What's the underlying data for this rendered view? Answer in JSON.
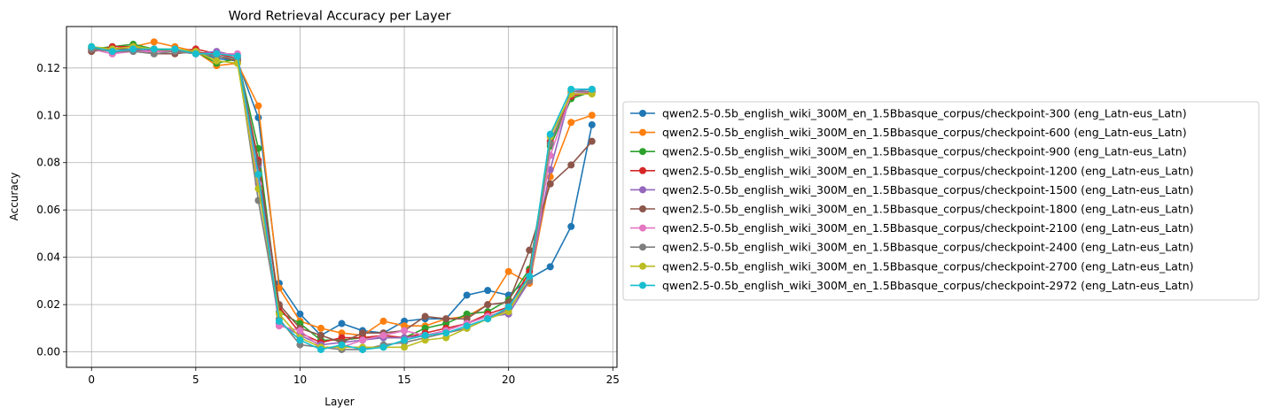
{
  "chart_data": {
    "type": "line",
    "title": "Word Retrieval Accuracy per Layer",
    "xlabel": "Layer",
    "ylabel": "Accuracy",
    "xlim": [
      -1.2,
      25.2
    ],
    "ylim": [
      -0.0065,
      0.1375
    ],
    "xticks": [
      0,
      5,
      10,
      15,
      20,
      25
    ],
    "yticks": [
      0.0,
      0.02,
      0.04,
      0.06,
      0.08,
      0.1,
      0.12
    ],
    "ytick_labels": [
      "0.00",
      "0.02",
      "0.04",
      "0.06",
      "0.08",
      "0.10",
      "0.12"
    ],
    "grid": true,
    "legend_position": "center-left outside",
    "x": [
      0,
      1,
      2,
      3,
      4,
      5,
      6,
      7,
      8,
      9,
      10,
      11,
      12,
      13,
      14,
      15,
      16,
      17,
      18,
      19,
      20,
      21,
      22,
      23,
      24
    ],
    "series": [
      {
        "name": "qwen2.5-0.5b_english_wiki_300M_en_1.5Bbasque_corpus/checkpoint-300 (eng_Latn-eus_Latn)",
        "color": "#1f77b4",
        "values": [
          0.129,
          0.127,
          0.127,
          0.128,
          0.127,
          0.127,
          0.124,
          0.123,
          0.099,
          0.029,
          0.016,
          0.007,
          0.012,
          0.009,
          0.008,
          0.013,
          0.014,
          0.014,
          0.024,
          0.026,
          0.024,
          0.031,
          0.036,
          0.053,
          0.096
        ]
      },
      {
        "name": "qwen2.5-0.5b_english_wiki_300M_en_1.5Bbasque_corpus/checkpoint-600 (eng_Latn-eus_Latn)",
        "color": "#ff7f0e",
        "values": [
          0.128,
          0.128,
          0.129,
          0.131,
          0.129,
          0.127,
          0.121,
          0.122,
          0.104,
          0.027,
          0.013,
          0.01,
          0.008,
          0.007,
          0.013,
          0.011,
          0.011,
          0.014,
          0.015,
          0.02,
          0.034,
          0.029,
          0.074,
          0.097,
          0.1
        ]
      },
      {
        "name": "qwen2.5-0.5b_english_wiki_300M_en_1.5Bbasque_corpus/checkpoint-900 (eng_Latn-eus_Latn)",
        "color": "#2ca02c",
        "values": [
          0.128,
          0.129,
          0.13,
          0.128,
          0.127,
          0.127,
          0.122,
          0.124,
          0.086,
          0.017,
          0.012,
          0.005,
          0.005,
          0.006,
          0.006,
          0.006,
          0.01,
          0.012,
          0.016,
          0.017,
          0.022,
          0.035,
          0.087,
          0.107,
          0.11
        ]
      },
      {
        "name": "qwen2.5-0.5b_english_wiki_300M_en_1.5Bbasque_corpus/checkpoint-1200 (eng_Latn-eus_Latn)",
        "color": "#d62728",
        "values": [
          0.127,
          0.129,
          0.129,
          0.127,
          0.127,
          0.128,
          0.126,
          0.124,
          0.081,
          0.019,
          0.008,
          0.004,
          0.006,
          0.006,
          0.007,
          0.006,
          0.008,
          0.01,
          0.012,
          0.016,
          0.019,
          0.034,
          0.089,
          0.108,
          0.11
        ]
      },
      {
        "name": "qwen2.5-0.5b_english_wiki_300M_en_1.5Bbasque_corpus/checkpoint-1500 (eng_Latn-eus_Latn)",
        "color": "#9467bd",
        "values": [
          0.128,
          0.126,
          0.128,
          0.127,
          0.127,
          0.126,
          0.127,
          0.125,
          0.079,
          0.012,
          0.007,
          0.003,
          0.004,
          0.005,
          0.006,
          0.006,
          0.007,
          0.009,
          0.012,
          0.015,
          0.016,
          0.03,
          0.077,
          0.11,
          0.111
        ]
      },
      {
        "name": "qwen2.5-0.5b_english_wiki_300M_en_1.5Bbasque_corpus/checkpoint-1800 (eng_Latn-eus_Latn)",
        "color": "#8c564b",
        "values": [
          0.127,
          0.128,
          0.128,
          0.126,
          0.126,
          0.127,
          0.125,
          0.123,
          0.08,
          0.02,
          0.01,
          0.007,
          0.004,
          0.008,
          0.008,
          0.009,
          0.015,
          0.014,
          0.014,
          0.02,
          0.021,
          0.043,
          0.071,
          0.079,
          0.089
        ]
      },
      {
        "name": "qwen2.5-0.5b_english_wiki_300M_en_1.5Bbasque_corpus/checkpoint-2100 (eng_Latn-eus_Latn)",
        "color": "#e377c2",
        "values": [
          0.128,
          0.126,
          0.127,
          0.127,
          0.127,
          0.126,
          0.126,
          0.126,
          0.071,
          0.011,
          0.009,
          0.002,
          0.002,
          0.005,
          0.007,
          0.009,
          0.007,
          0.009,
          0.012,
          0.015,
          0.018,
          0.03,
          0.083,
          0.109,
          0.11
        ]
      },
      {
        "name": "qwen2.5-0.5b_english_wiki_300M_en_1.5Bbasque_corpus/checkpoint-2400 (eng_Latn-eus_Latn)",
        "color": "#7f7f7f",
        "values": [
          0.128,
          0.127,
          0.127,
          0.126,
          0.127,
          0.126,
          0.125,
          0.124,
          0.064,
          0.014,
          0.003,
          0.002,
          0.001,
          0.001,
          0.003,
          0.004,
          0.006,
          0.008,
          0.01,
          0.014,
          0.018,
          0.03,
          0.088,
          0.11,
          0.11
        ]
      },
      {
        "name": "qwen2.5-0.5b_english_wiki_300M_en_1.5Bbasque_corpus/checkpoint-2700 (eng_Latn-eus_Latn)",
        "color": "#bcbd22",
        "values": [
          0.129,
          0.128,
          0.129,
          0.128,
          0.128,
          0.127,
          0.123,
          0.122,
          0.069,
          0.016,
          0.006,
          0.002,
          0.002,
          0.002,
          0.002,
          0.002,
          0.005,
          0.006,
          0.01,
          0.014,
          0.017,
          0.032,
          0.091,
          0.109,
          0.109
        ]
      },
      {
        "name": "qwen2.5-0.5b_english_wiki_300M_en_1.5Bbasque_corpus/checkpoint-2972 (eng_Latn-eus_Latn)",
        "color": "#17becf",
        "values": [
          0.129,
          0.127,
          0.128,
          0.128,
          0.128,
          0.126,
          0.126,
          0.125,
          0.075,
          0.013,
          0.005,
          0.001,
          0.003,
          0.001,
          0.002,
          0.005,
          0.007,
          0.008,
          0.011,
          0.014,
          0.019,
          0.032,
          0.092,
          0.111,
          0.111
        ]
      }
    ]
  }
}
